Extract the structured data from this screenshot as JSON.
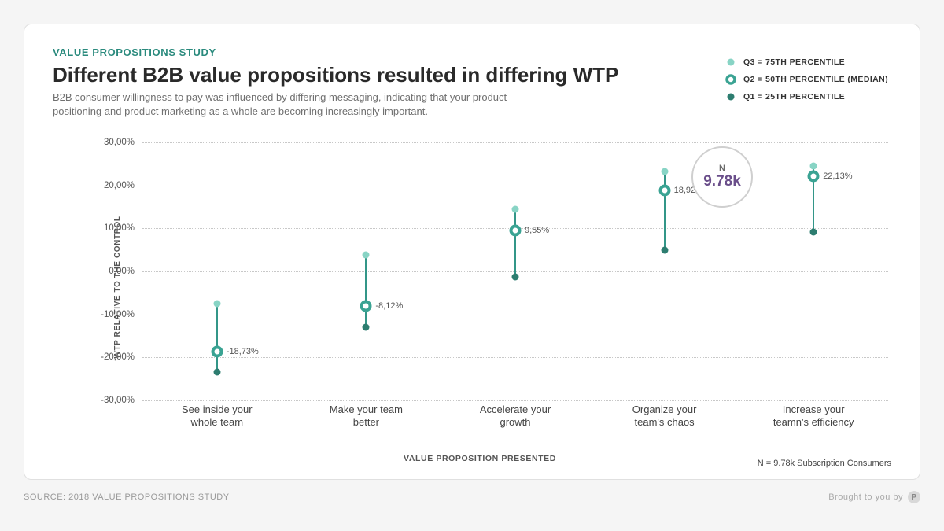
{
  "header": {
    "eyebrow": "VALUE PROPOSITIONS STUDY",
    "title": "Different B2B value propositions resulted in differing WTP",
    "subtitle": "B2B consumer willingness to pay was influenced by differing messaging, indicating that your product positioning and product marketing as a whole are becoming increasingly important."
  },
  "legend": {
    "q3": "Q3 = 75TH PERCENTILE",
    "q2": "Q2 = 50TH PERCENTILE (MEDIAN)",
    "q1": "Q1 = 25TH PERCENTILE"
  },
  "nbadge": {
    "label": "N",
    "value": "9.78k"
  },
  "chart": {
    "type": "range-dot",
    "ylabel": "WTP RELATIVE TO THE CONTROL",
    "xlabel": "VALUE PROPOSITION PRESENTED",
    "ylim": [
      -30,
      30
    ],
    "yticks": [
      -30,
      -20,
      -10,
      0,
      10,
      20,
      30
    ],
    "ytick_labels": [
      "-30,00%",
      "-20,00%",
      "-10,00%",
      "0,00%",
      "10,00%",
      "20,00%",
      "30,00%"
    ],
    "categories": [
      "See inside your\nwhole team",
      "Make your team\nbetter",
      "Accelerate your\ngrowth",
      "Organize your\nteam's chaos",
      "Increase your\nteamn's efficiency"
    ],
    "q1": [
      -23.5,
      -13.0,
      -1.2,
      5.0,
      9.2
    ],
    "q2": [
      -18.73,
      -8.12,
      9.55,
      18.92,
      22.13
    ],
    "q2_labels": [
      "-18,73%",
      "-8,12%",
      "9,55%",
      "18,92%",
      "22,13%"
    ],
    "q3": [
      -7.5,
      3.8,
      14.5,
      23.2,
      24.6
    ],
    "colors": {
      "q3_fill": "#88d4c5",
      "q2_stroke": "#3aa393",
      "q1_fill": "#2d7d70",
      "stem": "#339688",
      "gridline": "#c8c8c8",
      "background": "#ffffff"
    },
    "marker_sizes": {
      "q3": 9,
      "q1": 9,
      "q2_outer": 15,
      "q2_border": 4
    }
  },
  "footnote": "N = 9.78k Subscription Consumers",
  "footer": {
    "source": "SOURCE: 2018 VALUE PROPOSITIONS STUDY",
    "brought": "Brought to you by"
  }
}
